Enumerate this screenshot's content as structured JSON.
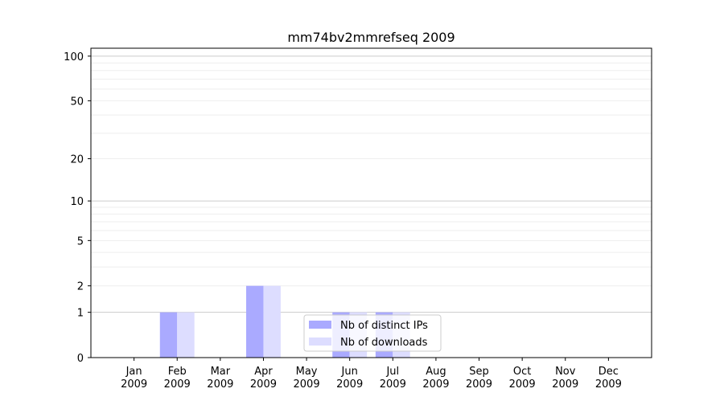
{
  "chart_data": {
    "type": "bar",
    "title": "mm74bv2mmrefseq 2009",
    "xlabel": "",
    "ylabel": "",
    "categories": [
      "Jan\n2009",
      "Feb\n2009",
      "Mar\n2009",
      "Apr\n2009",
      "May\n2009",
      "Jun\n2009",
      "Jul\n2009",
      "Aug\n2009",
      "Sep\n2009",
      "Oct\n2009",
      "Nov\n2009",
      "Dec\n2009"
    ],
    "series": [
      {
        "name": "Nb of distinct IPs",
        "color": "#aaaaff",
        "values": [
          0,
          1,
          0,
          2,
          0,
          1,
          1,
          0,
          0,
          0,
          0,
          0
        ]
      },
      {
        "name": "Nb of downloads",
        "color": "#ddddff",
        "values": [
          0,
          1,
          0,
          2,
          0,
          1,
          1,
          0,
          0,
          0,
          0,
          0
        ]
      }
    ],
    "y_scale": "log(1+y)",
    "ylim": [
      0,
      113
    ],
    "y_ticks": [
      0,
      1,
      2,
      5,
      10,
      20,
      50,
      100
    ],
    "grid": true,
    "legend_position": "lower-center"
  }
}
